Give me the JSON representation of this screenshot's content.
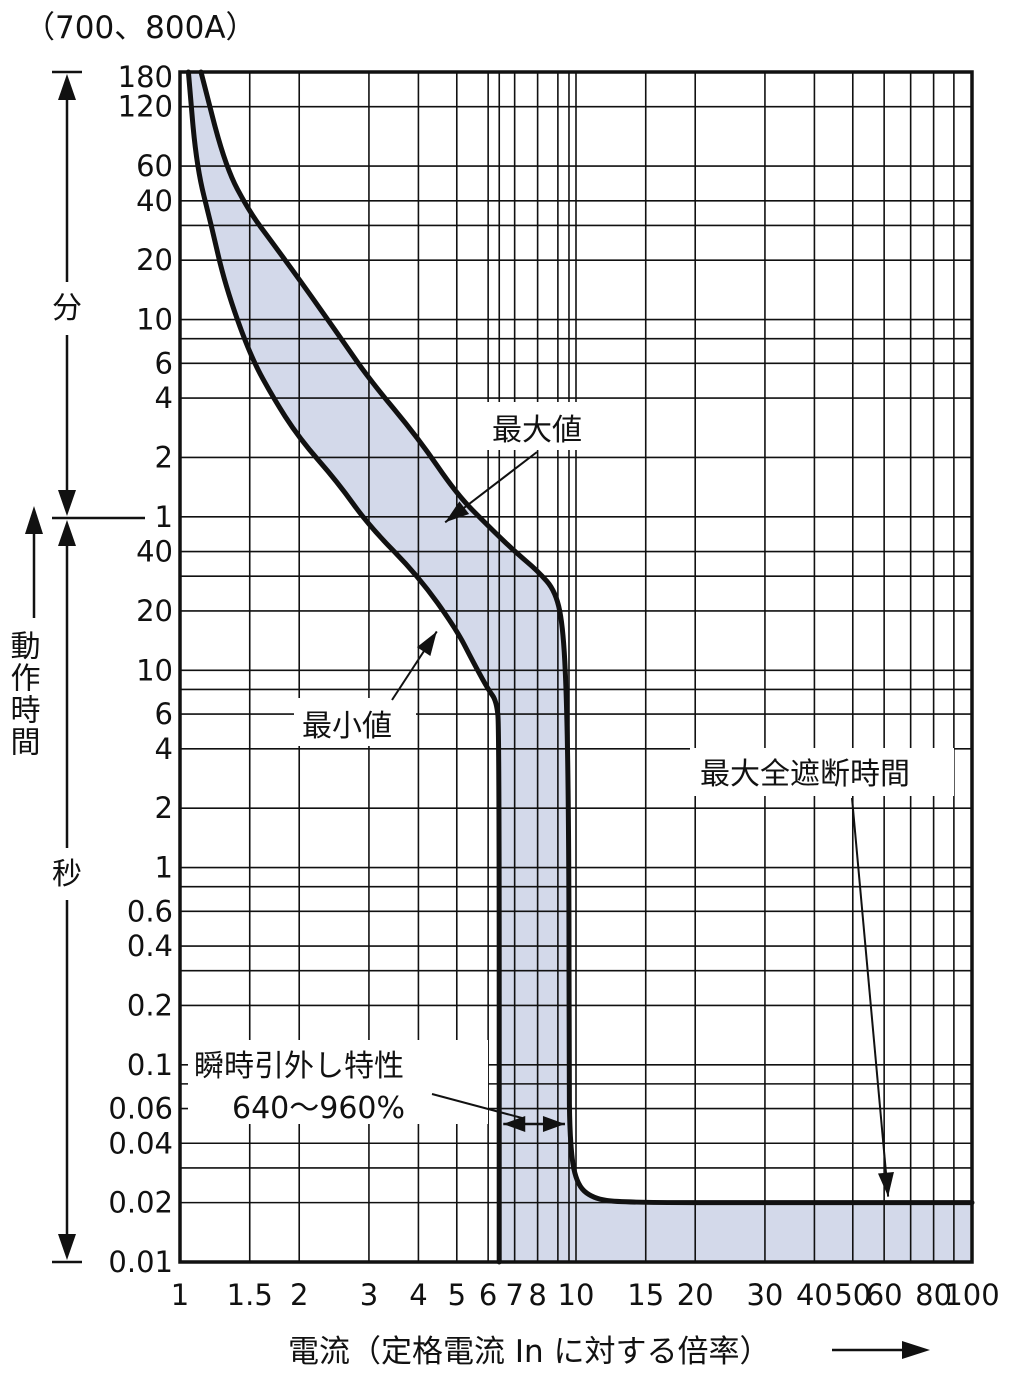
{
  "title": "（700、800A）",
  "chart_data": {
    "type": "line",
    "xlabel": "電流（定格電流 In に対する倍率）",
    "x_scale": "log",
    "xlim": [
      1,
      100
    ],
    "x_ticks": [
      {
        "value": 1,
        "label": "1"
      },
      {
        "value": 1.5,
        "label": "1.5"
      },
      {
        "value": 2,
        "label": "2"
      },
      {
        "value": 3,
        "label": "3"
      },
      {
        "value": 4,
        "label": "4"
      },
      {
        "value": 5,
        "label": "5"
      },
      {
        "value": 6,
        "label": "6"
      },
      {
        "value": 7,
        "label": "7"
      },
      {
        "value": 8,
        "label": "8"
      },
      {
        "value": 10,
        "label": "10"
      },
      {
        "value": 15,
        "label": "15"
      },
      {
        "value": 20,
        "label": "20"
      },
      {
        "value": 30,
        "label": "30"
      },
      {
        "value": 40,
        "label": "40"
      },
      {
        "value": 50,
        "label": "50"
      },
      {
        "value": 60,
        "label": "60"
      },
      {
        "value": 80,
        "label": "80"
      },
      {
        "value": 100,
        "label": "100"
      }
    ],
    "x_grid": [
      1,
      1.5,
      2,
      3,
      4,
      5,
      6,
      6.4,
      7,
      8,
      9,
      9.6,
      10,
      15,
      20,
      30,
      40,
      50,
      60,
      70,
      80,
      90,
      100
    ],
    "y_axis_words": {
      "minutes": "分",
      "seconds": "秒",
      "ylabel": "動作時間"
    },
    "y_scale": "log",
    "ylim_seconds": [
      0.01,
      10800
    ],
    "y_ticks": [
      {
        "seconds": 10800,
        "label": "180"
      },
      {
        "seconds": 7200,
        "label": "120"
      },
      {
        "seconds": 3600,
        "label": "60"
      },
      {
        "seconds": 2400,
        "label": "40"
      },
      {
        "seconds": 1200,
        "label": "20"
      },
      {
        "seconds": 600,
        "label": "10"
      },
      {
        "seconds": 360,
        "label": "6"
      },
      {
        "seconds": 240,
        "label": "4"
      },
      {
        "seconds": 120,
        "label": "2"
      },
      {
        "seconds": 60,
        "label": "1"
      },
      {
        "seconds": 40,
        "label": "40"
      },
      {
        "seconds": 20,
        "label": "20"
      },
      {
        "seconds": 10,
        "label": "10"
      },
      {
        "seconds": 6,
        "label": "6"
      },
      {
        "seconds": 4,
        "label": "4"
      },
      {
        "seconds": 2,
        "label": "2"
      },
      {
        "seconds": 1,
        "label": "1"
      },
      {
        "seconds": 0.6,
        "label": "0.6"
      },
      {
        "seconds": 0.4,
        "label": "0.4"
      },
      {
        "seconds": 0.2,
        "label": "0.2"
      },
      {
        "seconds": 0.1,
        "label": "0.1"
      },
      {
        "seconds": 0.06,
        "label": "0.06"
      },
      {
        "seconds": 0.04,
        "label": "0.04"
      },
      {
        "seconds": 0.02,
        "label": "0.02"
      },
      {
        "seconds": 0.01,
        "label": "0.01"
      }
    ],
    "y_grid_seconds": [
      10800,
      7200,
      3600,
      2400,
      1800,
      1200,
      600,
      480,
      360,
      240,
      120,
      60,
      40,
      30,
      20,
      10,
      8,
      6,
      4,
      2,
      1,
      0.8,
      0.6,
      0.4,
      0.3,
      0.2,
      0.1,
      0.08,
      0.06,
      0.04,
      0.03,
      0.02,
      0.01
    ],
    "series": [
      {
        "name": "最大値",
        "points": [
          [
            1.13,
            10800
          ],
          [
            1.3,
            3600
          ],
          [
            1.5,
            2100
          ],
          [
            1.7,
            1500
          ],
          [
            2,
            960
          ],
          [
            2.5,
            510
          ],
          [
            3,
            300
          ],
          [
            4,
            150
          ],
          [
            5,
            78
          ],
          [
            6,
            54
          ],
          [
            7,
            40
          ],
          [
            8,
            32
          ],
          [
            8.9,
            25
          ],
          [
            9.3,
            16
          ],
          [
            9.5,
            6
          ],
          [
            9.6,
            1
          ],
          [
            9.6,
            0.1
          ],
          [
            9.65,
            0.04
          ],
          [
            10,
            0.025
          ],
          [
            11,
            0.021
          ],
          [
            13,
            0.02
          ],
          [
            30,
            0.02
          ],
          [
            100,
            0.02
          ]
        ]
      },
      {
        "name": "最小値",
        "points": [
          [
            1.05,
            10800
          ],
          [
            1.1,
            3600
          ],
          [
            1.2,
            1800
          ],
          [
            1.3,
            900
          ],
          [
            1.5,
            400
          ],
          [
            1.7,
            250
          ],
          [
            2,
            150
          ],
          [
            2.5,
            90
          ],
          [
            3,
            54
          ],
          [
            4,
            30
          ],
          [
            5,
            16
          ],
          [
            5.5,
            11
          ],
          [
            6,
            8
          ],
          [
            6.3,
            7
          ],
          [
            6.4,
            5
          ],
          [
            6.4,
            0.01
          ]
        ]
      }
    ],
    "annotations": [
      {
        "text": "最大値",
        "x": 5.5,
        "y_seconds": 55
      },
      {
        "text": "最小値",
        "x": 5,
        "y_seconds": 14
      },
      {
        "text": "最大全遮断時間",
        "x": 60,
        "y_seconds": 0.02
      },
      {
        "text": "瞬時引外し特性",
        "text2": "640〜960%",
        "x_from": 6.4,
        "x_to": 9.6,
        "y_seconds": 0.04
      }
    ]
  }
}
